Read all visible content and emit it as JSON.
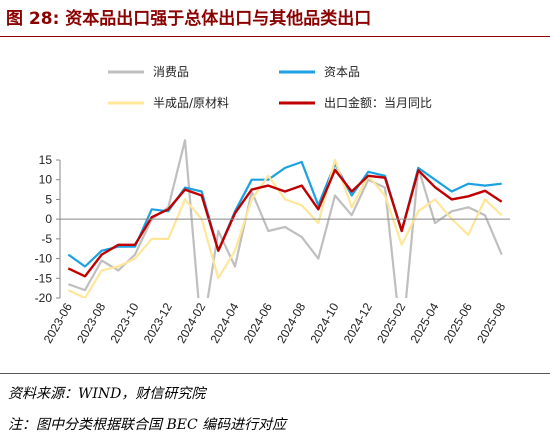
{
  "figure": {
    "title": "图 28:  资本品出口强于总体出口与其他品类出口",
    "source": "资料来源：WIND，财信研究院",
    "note": "注：图中分类根据联合国 BEC 编码进行对应"
  },
  "chart_data": {
    "type": "line",
    "title": "",
    "xlabel": "",
    "ylabel": "",
    "ylim": [
      -20,
      15
    ],
    "yticks": [
      15,
      10,
      5,
      0,
      -5,
      -10,
      -15,
      -20
    ],
    "grid": false,
    "legend_position": "top",
    "x": [
      "2023-06",
      "2023-07",
      "2023-08",
      "2023-09",
      "2023-10",
      "2023-11",
      "2023-12",
      "2024-01",
      "2024-02",
      "2024-03",
      "2024-04",
      "2024-05",
      "2024-06",
      "2024-07",
      "2024-08",
      "2024-09",
      "2024-10",
      "2024-11",
      "2024-12",
      "2025-01",
      "2025-02",
      "2025-03",
      "2025-04",
      "2025-05",
      "2025-06",
      "2025-07",
      "2025-08"
    ],
    "xtick_labels": [
      "2023-06",
      "2023-08",
      "2023-10",
      "2023-12",
      "2024-02",
      "2024-04",
      "2024-06",
      "2024-08",
      "2024-10",
      "2024-12",
      "2025-02",
      "2025-04",
      "2025-06",
      "2025-08"
    ],
    "series": [
      {
        "name": "消费品",
        "color": "#bfbfbf",
        "values": [
          -16.5,
          -18,
          -10.5,
          -13,
          -9,
          0,
          3,
          20,
          -30,
          -3,
          -12,
          7,
          -3,
          -2,
          -4.5,
          -10,
          6,
          1,
          10,
          8,
          -32,
          13,
          -1,
          2,
          3,
          1,
          -9
        ]
      },
      {
        "name": "资本品",
        "color": "#1ba1e2",
        "values": [
          -9,
          -12,
          -8,
          -7,
          -7,
          2.5,
          2,
          8,
          7,
          -8,
          2,
          10,
          10,
          13,
          14.5,
          3.5,
          14,
          6,
          12,
          11,
          -3,
          13,
          10,
          7,
          9,
          8.5,
          9
        ]
      },
      {
        "name": "半成品/原材料",
        "color": "#ffe699",
        "values": [
          -18,
          -20,
          -13,
          -12,
          -10,
          -5,
          -5,
          5,
          0,
          -15,
          -8,
          5,
          11,
          5,
          3.5,
          -1,
          15,
          3,
          11,
          6,
          -6.5,
          2,
          5,
          0,
          -4,
          5,
          1
        ]
      },
      {
        "name": "出口金额：当月同比",
        "color": "#c00000",
        "values": [
          -12.5,
          -14.5,
          -9,
          -6.5,
          -6.5,
          0.5,
          2.5,
          7.5,
          6,
          -8,
          1.5,
          7.5,
          8.5,
          7,
          8.5,
          2.5,
          12.5,
          7,
          11,
          10.5,
          -3,
          12.4,
          8.1,
          5,
          5.8,
          7.2,
          4.4
        ]
      }
    ]
  }
}
